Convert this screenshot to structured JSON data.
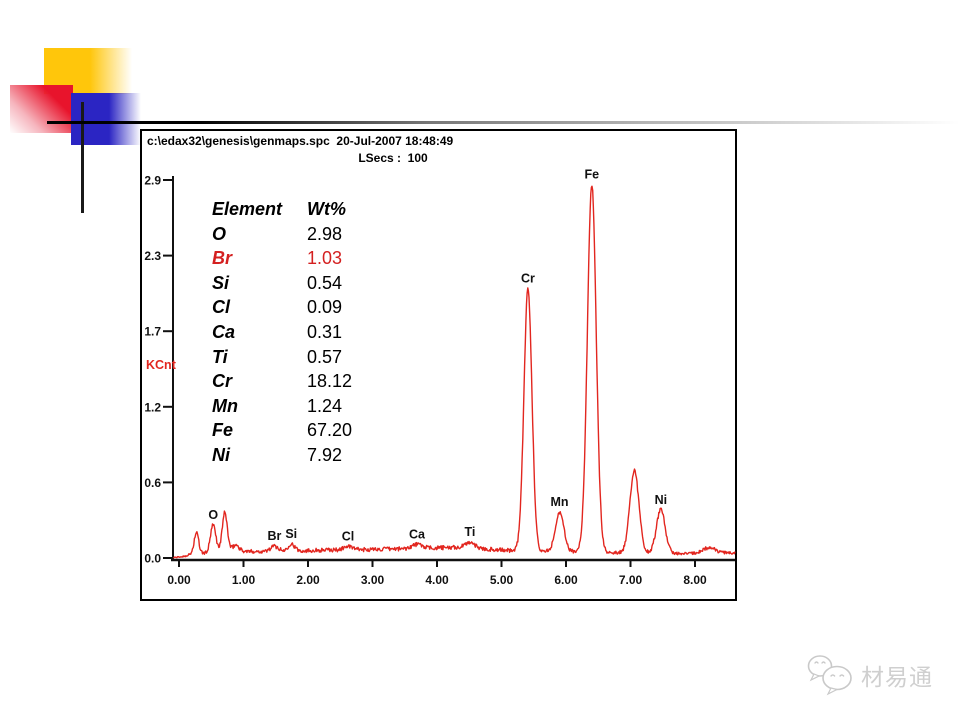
{
  "slide": {
    "background": "#ffffff"
  },
  "decoration": {
    "colors": {
      "yellow": "#ffc60b",
      "red": "#e8142c",
      "blue": "#2b25c3",
      "line": "#191919"
    }
  },
  "spectrum_panel": {
    "header": "c:\\edax32\\genesis\\genmaps.spc  20-Jul-2007 18:48:49",
    "live_seconds_label": "LSecs :  100"
  },
  "element_table": {
    "headers": [
      "Element",
      "Wt%"
    ],
    "highlight_color": "#d42020",
    "rows": [
      {
        "element": "O",
        "wt": "2.98",
        "highlight": false
      },
      {
        "element": "Br",
        "wt": "1.03",
        "highlight": true
      },
      {
        "element": "Si",
        "wt": "0.54",
        "highlight": false
      },
      {
        "element": "Cl",
        "wt": "0.09",
        "highlight": false
      },
      {
        "element": "Ca",
        "wt": "0.31",
        "highlight": false
      },
      {
        "element": "Ti",
        "wt": "0.57",
        "highlight": false
      },
      {
        "element": "Cr",
        "wt": "18.12",
        "highlight": false
      },
      {
        "element": "Mn",
        "wt": "1.24",
        "highlight": false
      },
      {
        "element": "Fe",
        "wt": "67.20",
        "highlight": false
      },
      {
        "element": "Ni",
        "wt": "7.92",
        "highlight": false
      }
    ]
  },
  "chart_data": {
    "type": "line",
    "title": "c:\\edax32\\genesis\\genmaps.spc 20-Jul-2007 18:48:49",
    "subtitle": "LSecs : 100",
    "ylabel": "KCnt",
    "xlabel": "",
    "x_unit": "keV",
    "x_ticks": [
      "0.00",
      "1.00",
      "2.00",
      "3.00",
      "4.00",
      "5.00",
      "6.00",
      "7.00",
      "8.00"
    ],
    "y_ticks": [
      "2.9",
      "2.3",
      "1.7",
      "1.2",
      "0.6",
      "0.0"
    ],
    "xlim": [
      -0.09,
      8.62
    ],
    "ylim": [
      0,
      2.9
    ],
    "grid": false,
    "legend": "none",
    "line_color": "#e2261f",
    "axis_color": "#111111",
    "peaks": [
      {
        "label": "",
        "x": 0.27,
        "h": 0.16,
        "sigma": 0.035
      },
      {
        "label": "O",
        "x": 0.53,
        "h": 0.21,
        "sigma": 0.042
      },
      {
        "label": "",
        "x": 0.71,
        "h": 0.3,
        "sigma": 0.04
      },
      {
        "label": "",
        "x": 0.88,
        "h": 0.05,
        "sigma": 0.05
      },
      {
        "label": "Br",
        "x": 1.48,
        "h": 0.04,
        "sigma": 0.06
      },
      {
        "label": "Si",
        "x": 1.74,
        "h": 0.055,
        "sigma": 0.05
      },
      {
        "label": "Cl",
        "x": 2.62,
        "h": 0.025,
        "sigma": 0.07
      },
      {
        "label": "Ca",
        "x": 3.69,
        "h": 0.03,
        "sigma": 0.08
      },
      {
        "label": "Ti",
        "x": 4.51,
        "h": 0.045,
        "sigma": 0.07
      },
      {
        "label": "Cr",
        "x": 5.41,
        "h": 2.0,
        "sigma": 0.062
      },
      {
        "label": "Mn",
        "x": 5.9,
        "h": 0.3,
        "sigma": 0.065
      },
      {
        "label": "Fe",
        "x": 6.4,
        "h": 2.8,
        "sigma": 0.068
      },
      {
        "label": "",
        "x": 7.06,
        "h": 0.63,
        "sigma": 0.07
      },
      {
        "label": "Ni",
        "x": 7.47,
        "h": 0.33,
        "sigma": 0.068
      },
      {
        "label": "",
        "x": 8.22,
        "h": 0.045,
        "sigma": 0.09
      }
    ],
    "continuum": [
      [
        -0.09,
        0.002
      ],
      [
        0.05,
        0.01
      ],
      [
        0.2,
        0.03
      ],
      [
        0.5,
        0.04
      ],
      [
        0.9,
        0.05
      ],
      [
        1.5,
        0.05
      ],
      [
        2.2,
        0.06
      ],
      [
        3.0,
        0.065
      ],
      [
        3.8,
        0.075
      ],
      [
        4.3,
        0.08
      ],
      [
        4.6,
        0.075
      ],
      [
        5.0,
        0.06
      ],
      [
        5.7,
        0.05
      ],
      [
        6.2,
        0.05
      ],
      [
        6.9,
        0.04
      ],
      [
        7.6,
        0.035
      ],
      [
        8.1,
        0.035
      ],
      [
        8.62,
        0.04
      ]
    ],
    "noise_amplitude": 0.012
  },
  "watermark": {
    "text": "材易通",
    "color": "#cfcfcf"
  }
}
